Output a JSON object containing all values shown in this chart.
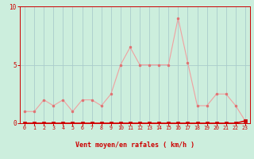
{
  "x": [
    0,
    1,
    2,
    3,
    4,
    5,
    6,
    7,
    8,
    9,
    10,
    11,
    12,
    13,
    14,
    15,
    16,
    17,
    18,
    19,
    20,
    21,
    22,
    23
  ],
  "y_rafales": [
    1.0,
    1.0,
    2.0,
    1.5,
    2.0,
    1.0,
    2.0,
    2.0,
    1.5,
    2.5,
    5.0,
    6.5,
    5.0,
    5.0,
    5.0,
    5.0,
    9.0,
    5.2,
    1.5,
    1.5,
    2.5,
    2.5,
    1.5,
    0.2
  ],
  "y_moyen": [
    0.0,
    0.0,
    0.0,
    0.0,
    0.0,
    0.0,
    0.0,
    0.0,
    0.0,
    0.0,
    0.0,
    0.0,
    0.0,
    0.0,
    0.0,
    0.0,
    0.0,
    0.0,
    0.0,
    0.0,
    0.0,
    0.0,
    0.0,
    0.2
  ],
  "color_rafales": "#f0a0a0",
  "color_moyen": "#dd0000",
  "marker_color_rafales": "#e07070",
  "marker_color_moyen": "#cc0000",
  "background_color": "#cceedd",
  "grid_color": "#aacccc",
  "xlabel": "Vent moyen/en rafales ( km/h )",
  "xlabel_color": "#cc0000",
  "tick_color": "#cc0000",
  "ylim": [
    0,
    10
  ],
  "xlim": [
    -0.5,
    23.5
  ],
  "yticks": [
    0,
    5,
    10
  ],
  "xticks": [
    0,
    1,
    2,
    3,
    4,
    5,
    6,
    7,
    8,
    9,
    10,
    11,
    12,
    13,
    14,
    15,
    16,
    17,
    18,
    19,
    20,
    21,
    22,
    23
  ]
}
